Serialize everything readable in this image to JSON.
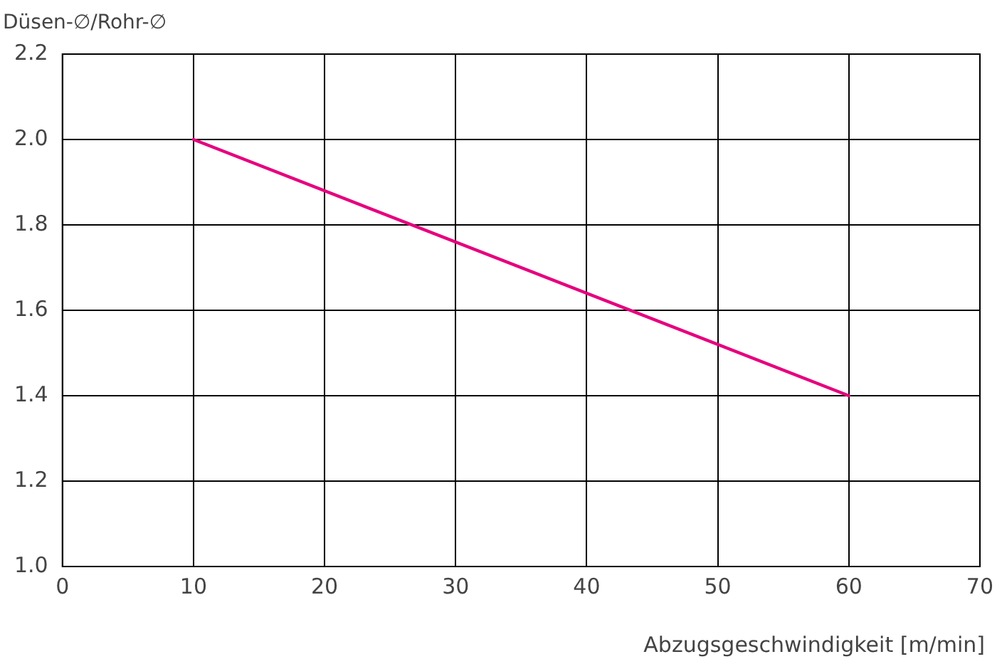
{
  "chart_data": {
    "type": "line",
    "xlabel": "Abzugsgeschwindigkeit [m/min]",
    "ylabel": "Düsen-∅/Rohr-∅",
    "x": [
      10,
      60
    ],
    "series": [
      {
        "color": "#e6007e",
        "values": [
          2.0,
          1.4
        ]
      }
    ],
    "xlim": [
      0,
      70
    ],
    "xticks": [
      0,
      10,
      20,
      30,
      40,
      50,
      60,
      70
    ],
    "ylim": [
      1.0,
      2.2
    ],
    "yticks": [
      {
        "value": 1.0,
        "label": "1.0"
      },
      {
        "value": 1.2,
        "label": "1.2"
      },
      {
        "value": 1.4,
        "label": "1.4"
      },
      {
        "value": 1.6,
        "label": "1.6"
      },
      {
        "value": 1.8,
        "label": "1.8"
      },
      {
        "value": 2.0,
        "label": "2.0"
      },
      {
        "value": 2.2,
        "label": "2.2"
      }
    ],
    "grid": true,
    "legend": false,
    "marker": "none",
    "line_style": "solid"
  }
}
